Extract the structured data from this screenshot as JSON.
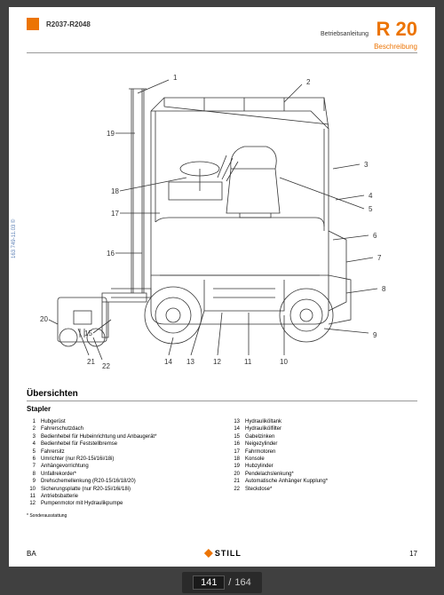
{
  "header": {
    "model_range": "R2037-R2048",
    "doc_type": "Betriebsanleitung",
    "series": "R 20",
    "section": "Beschreibung"
  },
  "side_ref": "163 749-11.03 ©",
  "diagram": {
    "type": "technical-illustration",
    "callouts_main": [
      "1",
      "2",
      "3",
      "4",
      "5",
      "6",
      "7",
      "8",
      "9",
      "10",
      "11",
      "12",
      "13",
      "14",
      "15",
      "16",
      "17",
      "18",
      "19"
    ],
    "callouts_inset": [
      "20",
      "21",
      "22"
    ],
    "line_color": "#333333",
    "line_width": 0.8
  },
  "overview": {
    "title": "Übersichten",
    "subtitle": "Stapler"
  },
  "parts_left": [
    {
      "n": "1",
      "t": "Hubgerüst"
    },
    {
      "n": "2",
      "t": "Fahrerschutzdach"
    },
    {
      "n": "3",
      "t": "Bedienhebel für Hubeinrichtung und Anbaugerät*"
    },
    {
      "n": "4",
      "t": "Bedienhebel für Feststellbremse"
    },
    {
      "n": "5",
      "t": "Fahrersitz"
    },
    {
      "n": "6",
      "t": "Umrichter (nur R20-15i/16i/18i)"
    },
    {
      "n": "7",
      "t": "Anhängevorrichtung"
    },
    {
      "n": "8",
      "t": "Unfallrekorder*"
    },
    {
      "n": "9",
      "t": "Drehschemellenkung (R20-15/16/18/20)"
    },
    {
      "n": "10",
      "t": "Sicherungsplatte (nur R20-15i/16i/18i)"
    },
    {
      "n": "11",
      "t": "Antriebsbatterie"
    },
    {
      "n": "12",
      "t": "Pumpenmotor mit Hydraulikpumpe"
    }
  ],
  "parts_right": [
    {
      "n": "13",
      "t": "Hydrauliköltank"
    },
    {
      "n": "14",
      "t": "Hydraulikölfilter"
    },
    {
      "n": "15",
      "t": "Gabelzinken"
    },
    {
      "n": "16",
      "t": "Neigezylinder"
    },
    {
      "n": "17",
      "t": "Fahrmotoren"
    },
    {
      "n": "18",
      "t": "Konsole"
    },
    {
      "n": "19",
      "t": "Hubzylinder"
    },
    {
      "n": "20",
      "t": "Pendelachslenkung*"
    },
    {
      "n": "21",
      "t": "Automatische Anhänger Kupplung*"
    },
    {
      "n": "22",
      "t": "Steckdose*"
    }
  ],
  "footnote": "* Sonderausstattung",
  "footer": {
    "ba": "BA",
    "logo_text": "STILL",
    "page_num": "17"
  },
  "counter": {
    "current": "141",
    "total": "164"
  },
  "colors": {
    "brand_orange": "#ec7404",
    "text": "#333333",
    "viewer_bg": "#404040"
  }
}
